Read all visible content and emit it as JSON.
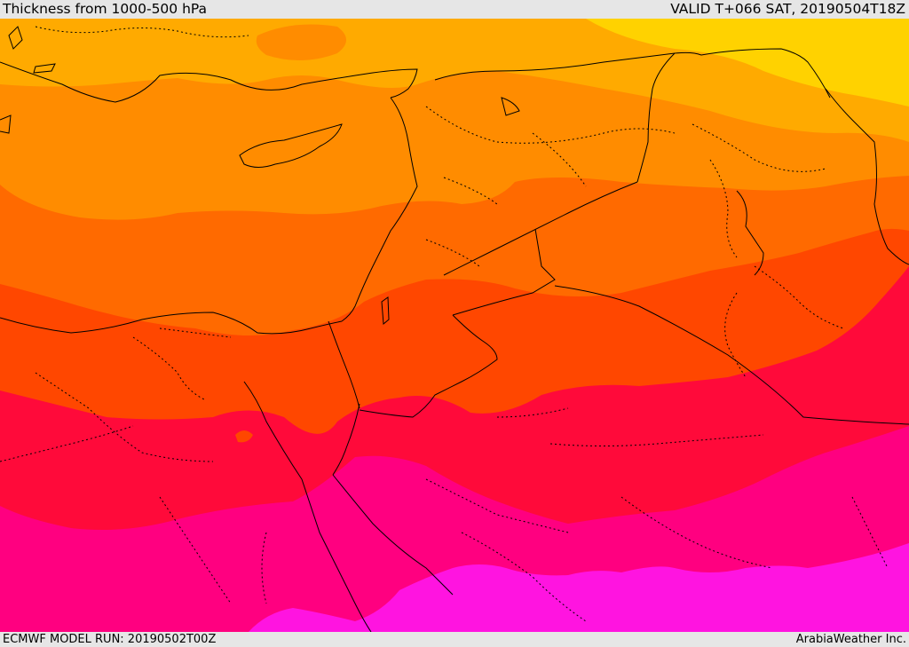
{
  "header": {
    "title": "Thickness from 1000-500 hPa",
    "valid": "VALID T+066 SAT, 20190504T18Z"
  },
  "footer": {
    "model_run": "ECMWF MODEL RUN: 20190502T00Z",
    "credit": "ArabiaWeather Inc."
  },
  "palette": {
    "yellow": "#ffd200",
    "light_orange": "#ffaa00",
    "orange": "#ff8c00",
    "dark_orange": "#ff6a00",
    "red_orange": "#ff4700",
    "red": "#ff0a3a",
    "magenta": "#ff0080",
    "violet": "#ff14e0",
    "outline": "#000000"
  }
}
